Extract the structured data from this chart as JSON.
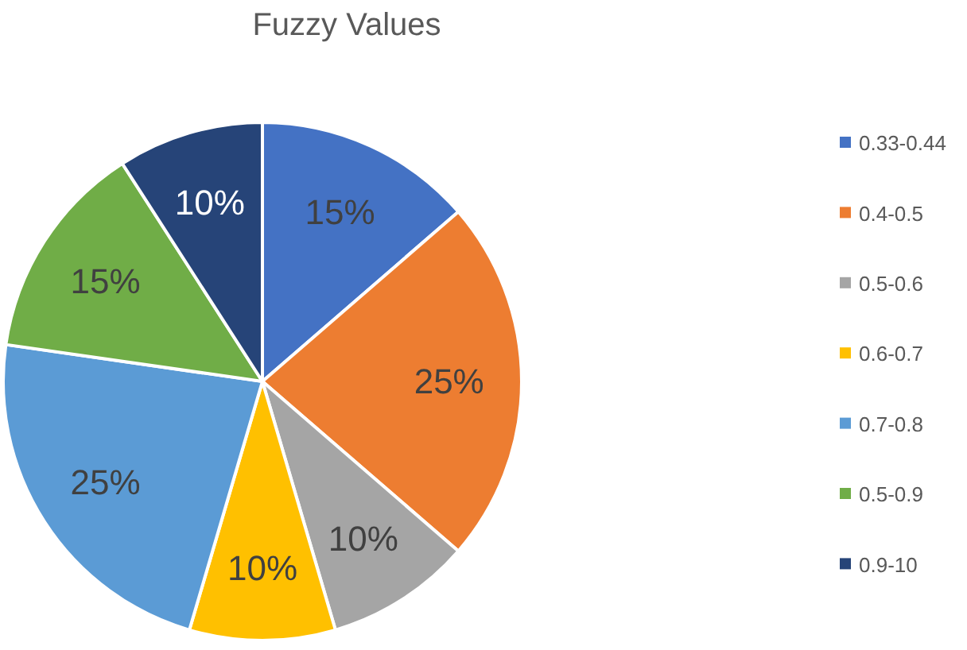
{
  "chart_data": {
    "type": "pie",
    "title": "Fuzzy Values",
    "categories": [
      "0.33-0.44",
      "0.4-0.5",
      "0.5-0.6",
      "0.6-0.7",
      "0.7-0.8",
      "0.5-0.9",
      "0.9-10"
    ],
    "values": [
      15,
      25,
      10,
      10,
      25,
      15,
      10
    ],
    "colors": [
      "#4472c4",
      "#ed7d31",
      "#a5a5a5",
      "#ffc000",
      "#5b9bd5",
      "#70ad47",
      "#264478"
    ],
    "value_labels": [
      "15%",
      "25%",
      "10%",
      "10%",
      "25%",
      "15%",
      "10%"
    ],
    "legend": "right"
  }
}
